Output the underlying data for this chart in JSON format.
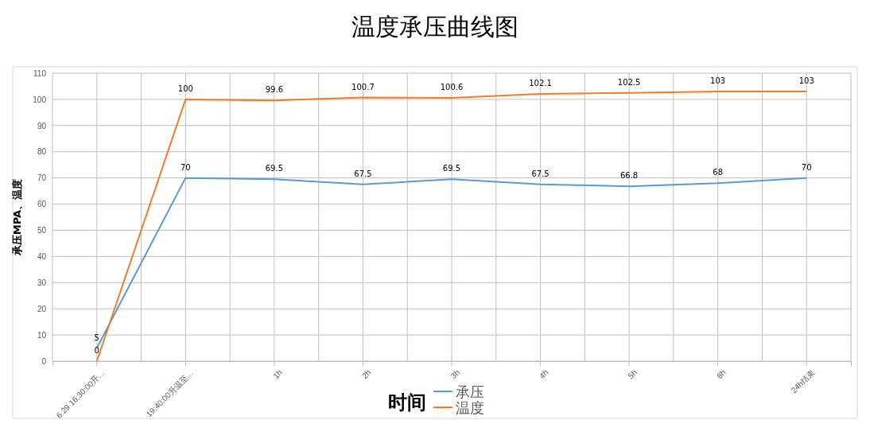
{
  "chart_data": {
    "type": "line",
    "title": "温度承压曲线图",
    "xlabel": "时间",
    "ylabel": "承压MPA、温度",
    "categories": [
      "6.29 16:30:00开…",
      "19:40:00升温至…",
      "1h",
      "2h",
      "3h",
      "4h",
      "5h",
      "6h",
      "24h结束"
    ],
    "series": [
      {
        "name": "承压",
        "color": "#5b9bd5",
        "values": [
          5,
          70,
          69.5,
          67.5,
          69.5,
          67.5,
          66.8,
          68,
          70
        ]
      },
      {
        "name": "温度",
        "color": "#ed7d31",
        "values": [
          0,
          100,
          99.6,
          100.7,
          100.6,
          102.1,
          102.5,
          103,
          103
        ]
      }
    ],
    "ylim": [
      0,
      110
    ],
    "yticks": [
      0,
      10,
      20,
      30,
      40,
      50,
      60,
      70,
      80,
      90,
      100,
      110
    ],
    "grid": true,
    "legend": "bottom",
    "data_labels": true,
    "marker": "none",
    "line_style": "solid"
  }
}
